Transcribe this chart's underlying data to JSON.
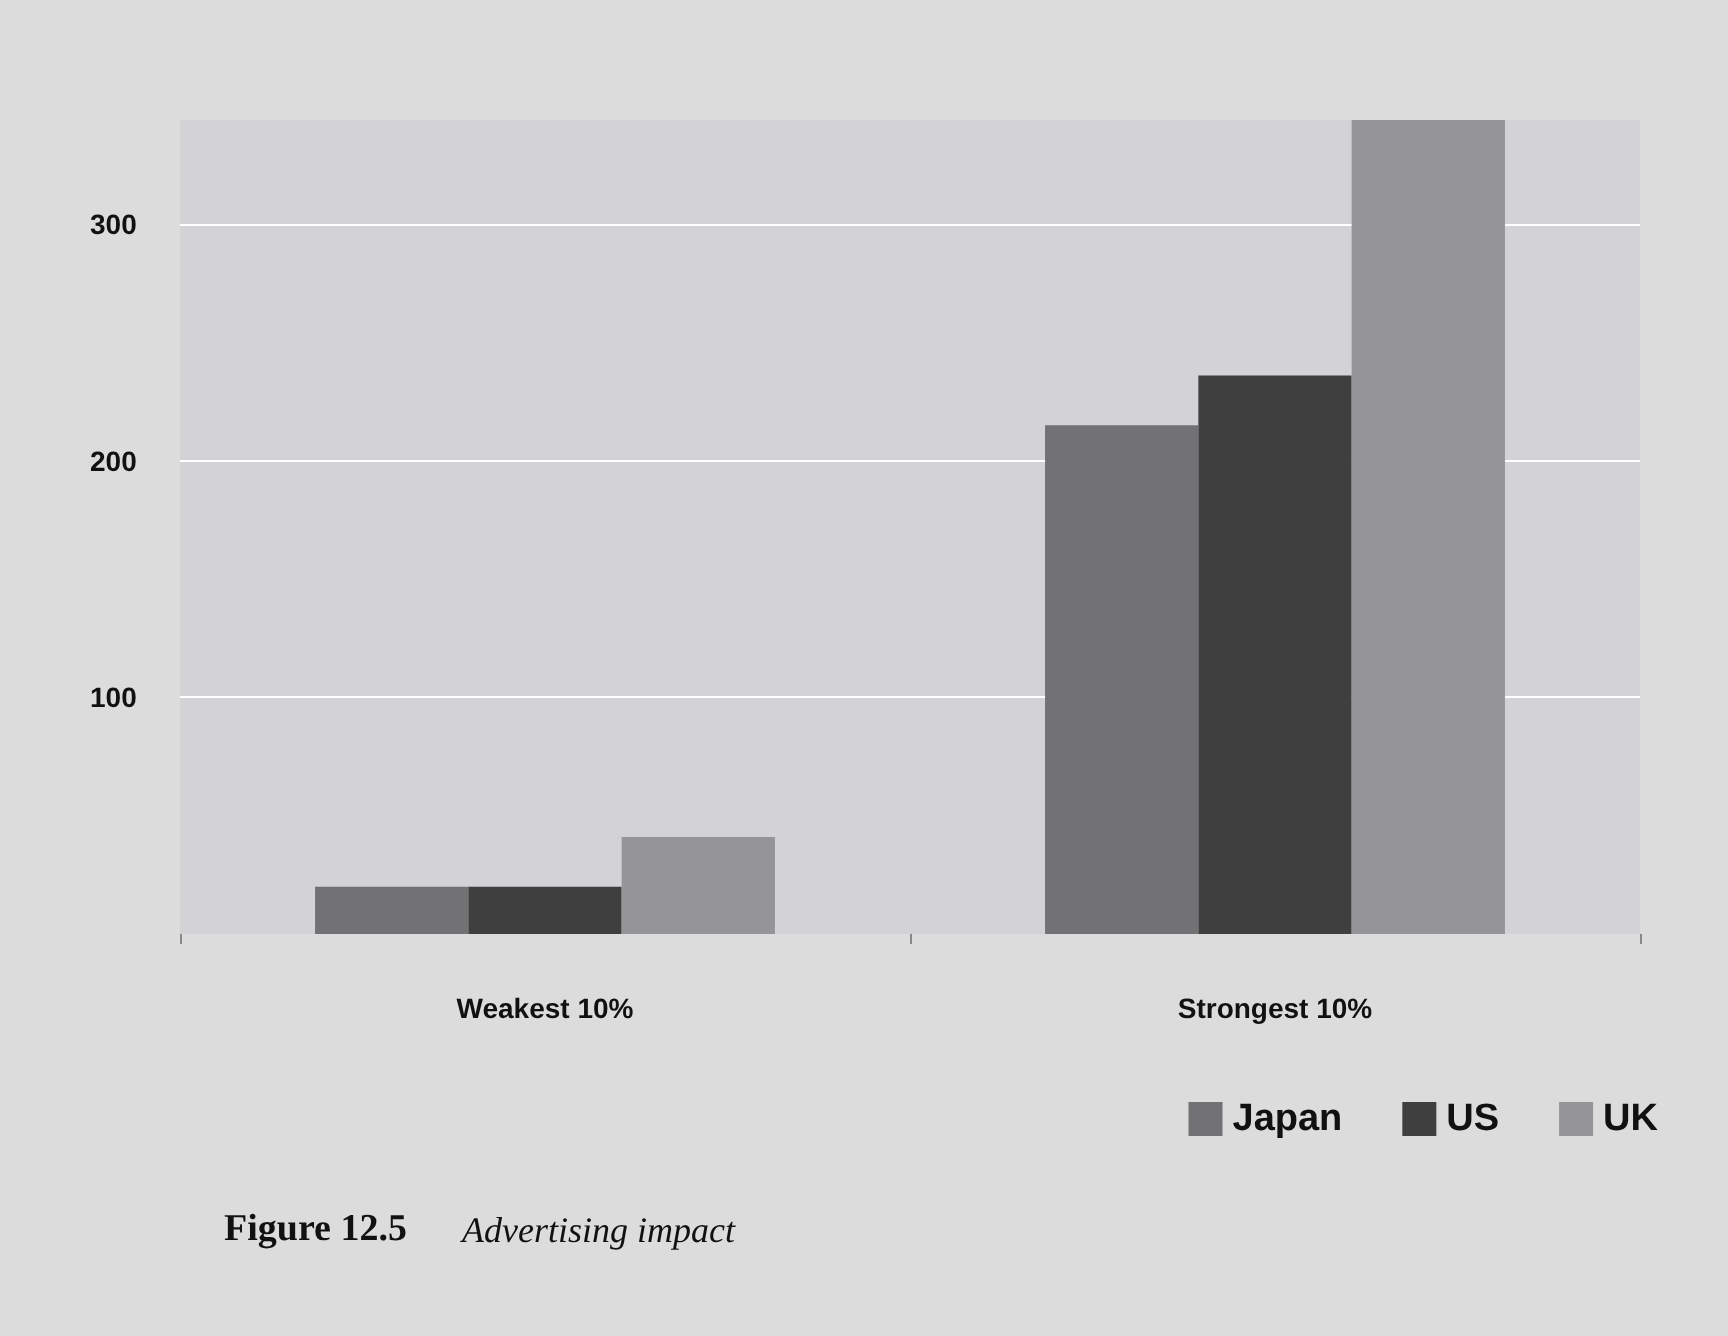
{
  "chart_data": {
    "type": "bar",
    "title": "Figure 12.5",
    "subtitle": "Advertising impact",
    "categories": [
      "Weakest 10%",
      "Strongest 10%"
    ],
    "series": [
      {
        "name": "Japan",
        "color": "#727274",
        "values": [
          20,
          215
        ]
      },
      {
        "name": "US",
        "color": "#3f3f3f",
        "values": [
          20,
          236
        ]
      },
      {
        "name": "UK",
        "color": "#959598",
        "values": [
          41,
          344
        ]
      }
    ],
    "ylim": [
      0,
      344
    ],
    "yticks": [
      100,
      200,
      300
    ],
    "grid": "y",
    "legend": "bottom right"
  }
}
